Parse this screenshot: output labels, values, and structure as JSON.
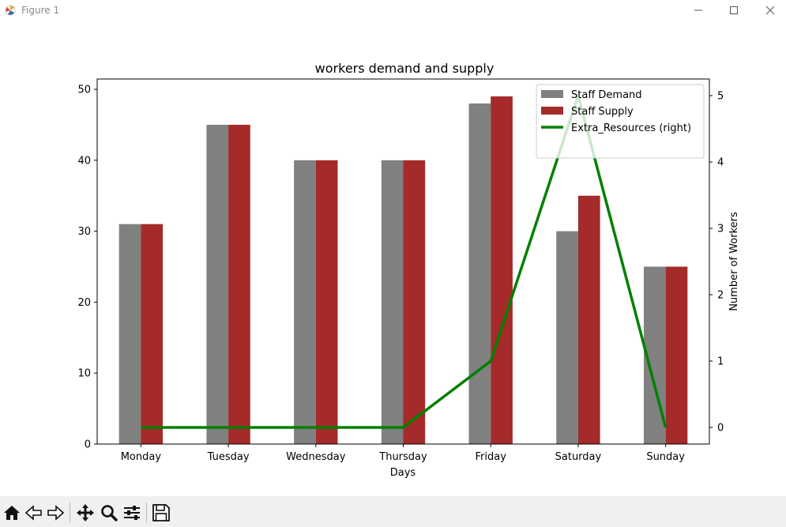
{
  "window": {
    "title": "Figure 1",
    "controls": [
      "minimize",
      "maximize",
      "close"
    ]
  },
  "toolbar": {
    "buttons": [
      "home-icon",
      "back-icon",
      "forward-icon",
      "pan-icon",
      "zoom-icon",
      "configure-subplots-icon",
      "save-icon"
    ]
  },
  "chart_data": {
    "type": "bar",
    "title": "workers demand and supply",
    "xlabel": "Days",
    "ylabel": "",
    "ylabel_right": "Number of Workers",
    "categories": [
      "Monday",
      "Tuesday",
      "Wednesday",
      "Thursday",
      "Friday",
      "Saturday",
      "Sunday"
    ],
    "ylim": [
      0,
      51.45
    ],
    "yticks": [
      0,
      10,
      20,
      30,
      40,
      50
    ],
    "ylim_right": [
      -0.25,
      5.25
    ],
    "yticks_right": [
      0,
      1,
      2,
      3,
      4,
      5
    ],
    "series": [
      {
        "name": "Staff Demand",
        "type": "bar",
        "color": "#808080",
        "values": [
          31,
          45,
          40,
          40,
          48,
          30,
          25
        ]
      },
      {
        "name": "Staff Supply",
        "type": "bar",
        "color": "#a52a2a",
        "values": [
          31,
          45,
          40,
          40,
          49,
          35,
          25
        ]
      },
      {
        "name": "Extra_Resources (right)",
        "type": "line",
        "axis": "right",
        "color": "#008000",
        "values": [
          0,
          0,
          0,
          0,
          1,
          5,
          0
        ]
      }
    ],
    "legend_position": "upper right",
    "grid": false
  }
}
